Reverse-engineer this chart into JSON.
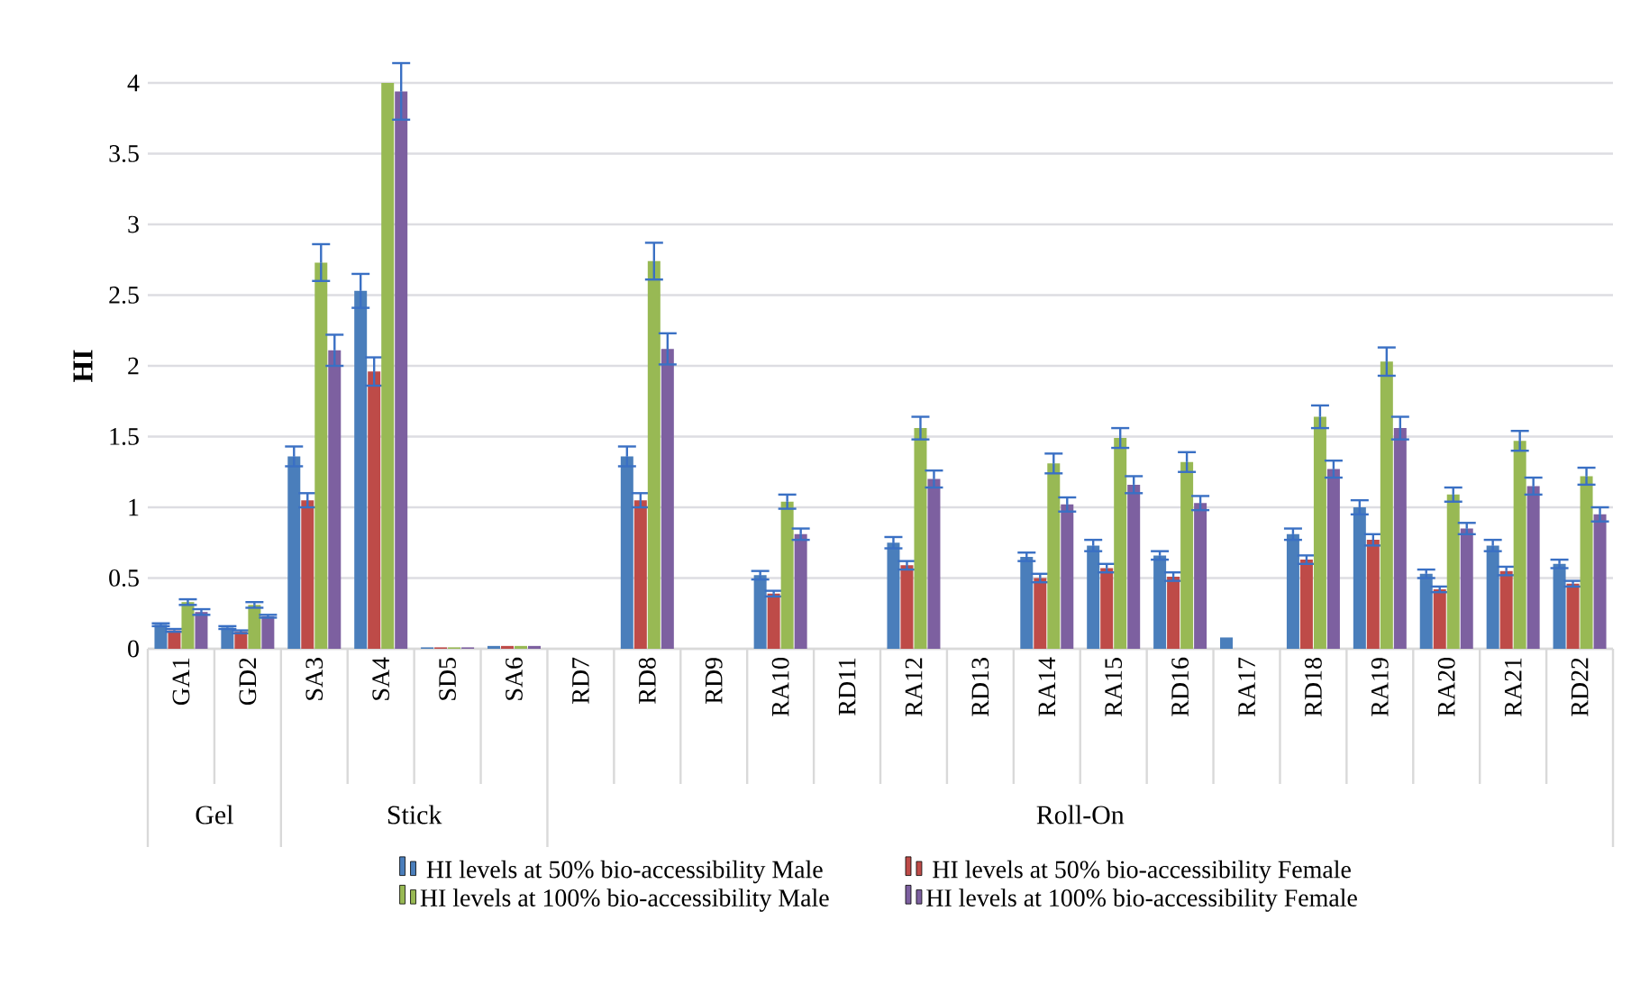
{
  "chart_data": {
    "type": "bar",
    "ylabel": "HI",
    "categories": [
      "GA1",
      "GD2",
      "SA3",
      "SA4",
      "SD5",
      "SA6",
      "RD7",
      "RD8",
      "RD9",
      "RA10",
      "RD11",
      "RA12",
      "RD13",
      "RA14",
      "RA15",
      "RD16",
      "RA17",
      "RD18",
      "RA19",
      "RA20",
      "RA21",
      "RD22"
    ],
    "series": [
      {
        "name": "HI levels at 50% bio-accessibility Male",
        "color": "#4a7ebb",
        "values": [
          0.17,
          0.15,
          1.36,
          2.53,
          0.01,
          0.02,
          null,
          1.36,
          null,
          0.52,
          null,
          0.75,
          null,
          0.65,
          0.73,
          0.66,
          0.08,
          0.81,
          1.0,
          0.53,
          0.73,
          0.6
        ],
        "errors": [
          0.01,
          0.01,
          0.07,
          0.12,
          null,
          null,
          null,
          0.07,
          null,
          0.03,
          null,
          0.04,
          null,
          0.03,
          0.04,
          0.03,
          null,
          0.04,
          0.05,
          0.03,
          0.04,
          0.03
        ]
      },
      {
        "name": "HI levels at 50% bio-accessibility Female",
        "color": "#be4b48",
        "values": [
          0.13,
          0.12,
          1.05,
          1.96,
          0.01,
          0.02,
          null,
          1.05,
          null,
          0.39,
          null,
          0.59,
          null,
          0.5,
          0.57,
          0.51,
          null,
          0.63,
          0.77,
          0.42,
          0.55,
          0.46
        ],
        "errors": [
          0.01,
          0.01,
          0.05,
          0.1,
          null,
          null,
          null,
          0.05,
          null,
          0.02,
          null,
          0.03,
          null,
          0.03,
          0.03,
          0.03,
          null,
          0.03,
          0.04,
          0.02,
          0.03,
          0.02
        ]
      },
      {
        "name": "HI levels at 100% bio-accessibility Male",
        "color": "#98b954",
        "values": [
          0.33,
          0.31,
          2.73,
          4,
          0.01,
          0.02,
          null,
          2.74,
          null,
          1.04,
          null,
          1.56,
          null,
          1.31,
          1.49,
          1.32,
          null,
          1.64,
          2.03,
          1.09,
          1.47,
          1.22
        ],
        "errors": [
          0.02,
          0.02,
          0.13,
          null,
          null,
          null,
          null,
          0.13,
          null,
          0.05,
          null,
          0.08,
          null,
          0.07,
          0.07,
          0.07,
          null,
          0.08,
          0.1,
          0.05,
          0.07,
          0.06
        ]
      },
      {
        "name": "HI levels at 100% bio-accessibility Female",
        "color": "#7d60a0",
        "values": [
          0.26,
          0.23,
          2.11,
          3.94,
          0.01,
          0.02,
          null,
          2.12,
          null,
          0.81,
          null,
          1.2,
          null,
          1.02,
          1.16,
          1.03,
          null,
          1.27,
          1.56,
          0.85,
          1.15,
          0.95
        ],
        "errors": [
          0.02,
          0.01,
          0.11,
          0.2,
          null,
          null,
          null,
          0.11,
          null,
          0.04,
          null,
          0.06,
          null,
          0.05,
          0.06,
          0.05,
          null,
          0.06,
          0.08,
          0.04,
          0.06,
          0.05
        ]
      }
    ],
    "annotations": [
      "Gel",
      "Stick",
      "Roll-On"
    ],
    "ylim": [
      0,
      4
    ],
    "yticks": [
      0,
      0.5,
      1,
      1.5,
      2,
      2.5,
      3,
      3.5,
      4
    ],
    "grid": "y",
    "legend": "bottom"
  }
}
